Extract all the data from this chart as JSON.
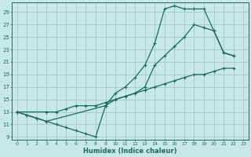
{
  "xlabel": "Humidex (Indice chaleur)",
  "bg_color": "#c8e8e8",
  "grid_color": "#a0c8c8",
  "line_color": "#1a6b5a",
  "xlim": [
    -0.5,
    23.5
  ],
  "ylim": [
    8.5,
    30.5
  ],
  "xticks": [
    0,
    1,
    2,
    3,
    4,
    5,
    6,
    7,
    8,
    9,
    10,
    11,
    12,
    13,
    14,
    15,
    16,
    17,
    18,
    19,
    20,
    21,
    22,
    23
  ],
  "yticks": [
    9,
    11,
    13,
    15,
    17,
    19,
    21,
    23,
    25,
    27,
    29
  ],
  "line1_x": [
    0,
    1,
    2,
    3,
    4,
    5,
    6,
    7,
    8,
    9,
    10,
    11,
    12,
    13,
    14,
    15,
    16,
    17,
    18,
    19,
    20,
    21,
    22
  ],
  "line1_y": [
    13,
    12.5,
    12,
    11.5,
    11,
    10.5,
    10,
    9.5,
    9,
    14,
    15,
    15.5,
    16,
    17,
    20.5,
    22,
    23.5,
    25,
    27,
    26.5,
    26,
    22.5,
    22
  ],
  "line2_x": [
    0,
    1,
    2,
    3,
    9,
    10,
    11,
    12,
    13,
    14,
    15,
    16,
    17,
    18,
    19,
    20,
    21,
    22
  ],
  "line2_y": [
    13,
    12.5,
    12,
    11.5,
    14,
    16,
    17,
    18.5,
    20.5,
    24,
    29.5,
    30,
    29.5,
    29.5,
    29.5,
    26,
    22.5,
    22
  ],
  "line3_x": [
    0,
    3,
    4,
    5,
    6,
    7,
    8,
    9,
    10,
    11,
    12,
    13,
    14,
    15,
    16,
    17,
    18,
    19,
    20,
    21,
    22
  ],
  "line3_y": [
    13,
    13,
    13,
    13.5,
    14,
    14,
    14,
    14.5,
    15,
    15.5,
    16,
    16.5,
    17,
    17.5,
    18,
    18.5,
    19,
    19,
    19.5,
    20,
    20
  ]
}
